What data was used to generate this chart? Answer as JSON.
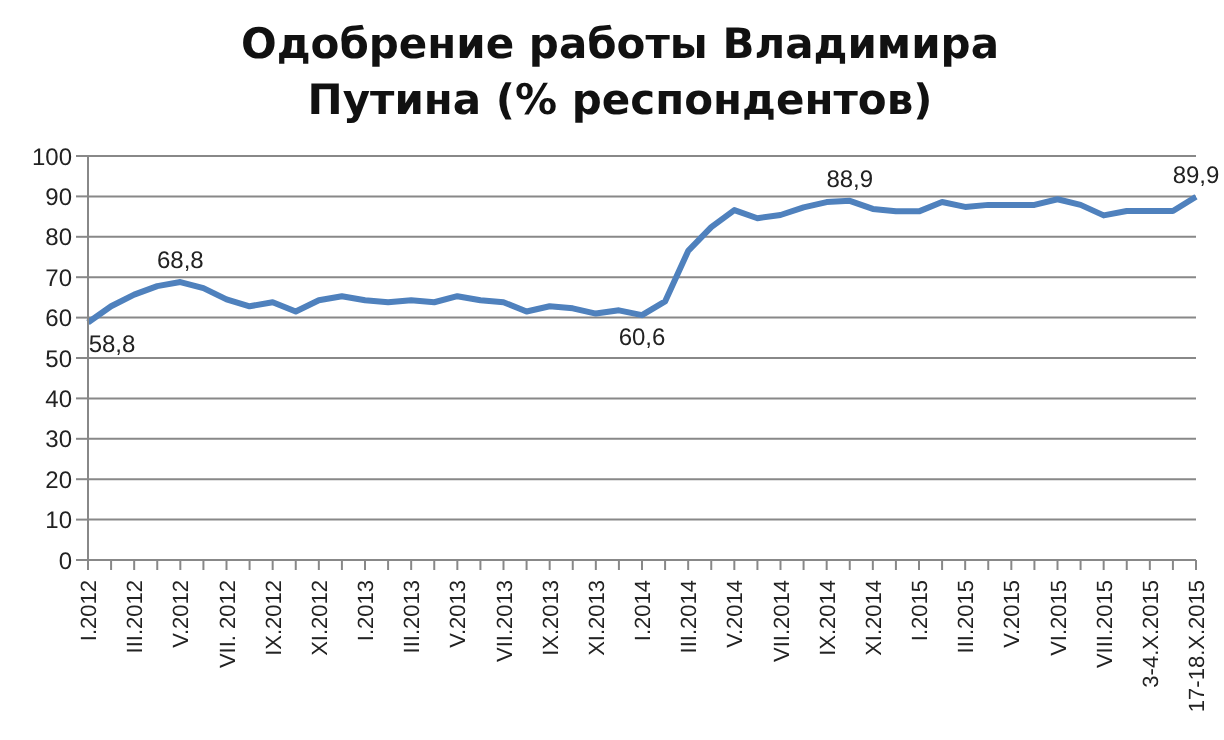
{
  "chart_data": {
    "type": "line",
    "title": "Одобрение работы Владимира Путина (% респондентов)",
    "categories": [
      "I.2012",
      null,
      "III.2012",
      null,
      "V.2012",
      null,
      "VII. 2012",
      null,
      "IX.2012",
      null,
      "XI.2012",
      null,
      "I.2013",
      null,
      "III.2013",
      null,
      "V.2013",
      null,
      "VII.2013",
      null,
      "IX.2013",
      null,
      "XI.2013",
      null,
      "I.2014",
      null,
      "III.2014",
      null,
      "V.2014",
      null,
      "VII.2014",
      null,
      "IX.2014",
      null,
      "XI.2014",
      null,
      "I.2015",
      null,
      "III.2015",
      null,
      "V.2015",
      null,
      "VI.2015",
      null,
      "VIII.2015",
      null,
      "3-4.X.2015",
      null,
      "17-18.X.2015"
    ],
    "series": [
      {
        "color": "#4f81bd",
        "values": [
          58.8,
          62.8,
          65.7,
          67.8,
          68.8,
          67.3,
          64.5,
          62.8,
          63.8,
          61.5,
          64.3,
          65.3,
          64.3,
          63.8,
          64.3,
          63.8,
          65.3,
          64.3,
          63.8,
          61.5,
          62.8,
          62.3,
          61,
          61.8,
          60.6,
          64,
          76.5,
          82.4,
          86.6,
          84.6,
          85.4,
          87.3,
          88.6,
          88.9,
          86.9,
          86.3,
          86.3,
          88.6,
          87.4,
          87.9,
          87.9,
          87.9,
          89.3,
          87.9,
          85.3,
          86.4,
          86.4,
          86.4,
          89.9
        ],
        "value_labels": [
          "58,8",
          null,
          null,
          null,
          "68,8",
          null,
          null,
          null,
          null,
          null,
          null,
          null,
          null,
          null,
          null,
          null,
          null,
          null,
          null,
          null,
          null,
          null,
          null,
          null,
          "60,6",
          null,
          null,
          null,
          null,
          null,
          null,
          null,
          null,
          "88,9",
          null,
          null,
          null,
          null,
          null,
          null,
          null,
          null,
          null,
          null,
          null,
          null,
          null,
          null,
          "89,9"
        ]
      }
    ],
    "ylim": [
      0,
      100
    ],
    "yticks": [
      0,
      10,
      20,
      30,
      40,
      50,
      60,
      70,
      80,
      90,
      100
    ],
    "grid": "y",
    "legend": false,
    "marker": "none",
    "line_style": "solid"
  }
}
